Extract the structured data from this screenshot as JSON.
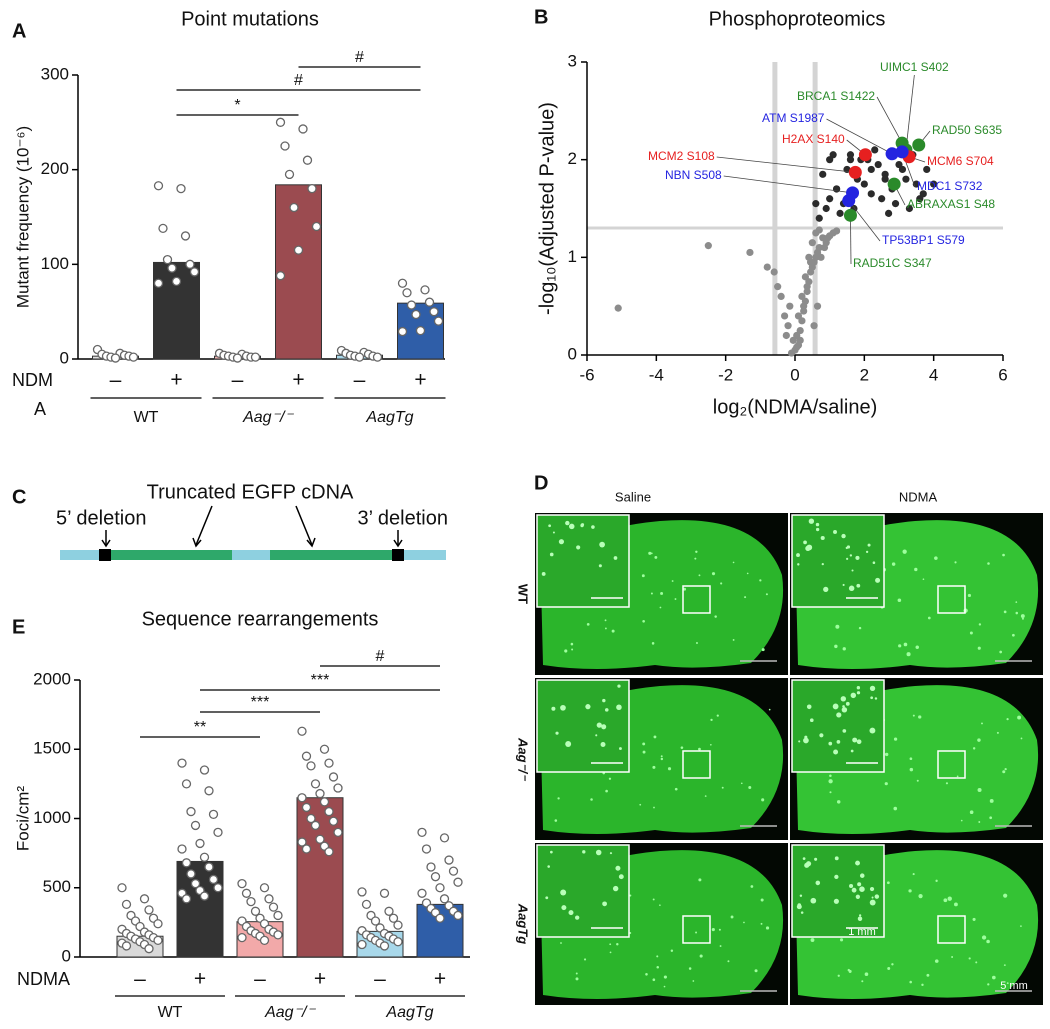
{
  "chart_data": [
    {
      "type": "bar",
      "panel": "A",
      "title": "Point mutations",
      "y_label": "Mutant frequency (10⁻⁶)",
      "treatment_label": "NDM",
      "treatment_label_wrap": "A",
      "categories": [
        "–",
        "+",
        "–",
        "+",
        "–",
        "+"
      ],
      "groups": [
        "WT",
        "Aag⁻/⁻",
        "AagTg"
      ],
      "values": [
        3,
        102,
        3,
        184,
        4,
        59
      ],
      "colors": [
        "#e0e0e0",
        "#333333",
        "#f2b3b3",
        "#9b4b50",
        "#a8d8ea",
        "#2f5ea8"
      ],
      "points": [
        [
          10,
          6,
          5,
          4,
          3,
          3,
          2,
          2,
          1
        ],
        [
          183,
          180,
          138,
          130,
          105,
          100,
          96,
          92,
          82,
          80
        ],
        [
          6,
          5,
          4,
          3,
          3,
          2,
          2,
          2,
          1
        ],
        [
          250,
          243,
          225,
          210,
          195,
          180,
          160,
          140,
          115,
          88
        ],
        [
          9,
          7,
          6,
          5,
          4,
          3,
          3,
          2,
          2
        ],
        [
          80,
          73,
          70,
          60,
          57,
          50,
          47,
          40,
          30,
          29
        ]
      ],
      "annotations": [
        "*",
        "#",
        "#"
      ],
      "ylim": [
        0,
        300
      ],
      "yticks": [
        0,
        100,
        200,
        300
      ]
    },
    {
      "type": "scatter",
      "panel": "B",
      "title": "Phosphoproteomics",
      "x_label": "log₂(NDMA/saline)",
      "y_label": "-log₁₀(Adjusted P-value)",
      "xlim": [
        -6,
        6
      ],
      "xticks": [
        -6,
        -4,
        -2,
        0,
        2,
        4,
        6
      ],
      "ylim": [
        0,
        3
      ],
      "yticks": [
        0,
        1,
        2,
        3
      ],
      "thresholds": {
        "x": [
          -0.58,
          0.58
        ],
        "y": 1.3
      },
      "series": [
        {
          "color": "#8c8c8c",
          "x": [
            -0.1,
            0.0,
            0.1,
            0.05,
            -0.05,
            0.15,
            0.2,
            -0.2,
            0.25,
            0.3,
            -0.3,
            0.35,
            0.4,
            -0.15,
            0.45,
            0.5,
            0.55,
            0.6,
            -0.4,
            0.7,
            0.65,
            0.8,
            0.3,
            0.5,
            0.4,
            0.2,
            0.1,
            0.6,
            0.7,
            0.9,
            -0.5,
            -0.6,
            -0.8,
            1.0,
            1.1,
            0.45,
            0.35,
            0.25,
            0.75,
            0.85,
            -1.3,
            -5.1,
            -2.5,
            0.95,
            0.55,
            0.65,
            1.2,
            -0.25,
            0.15,
            0.05
          ],
          "y": [
            0.02,
            0.05,
            0.1,
            0.2,
            0.15,
            0.25,
            0.35,
            0.3,
            0.45,
            0.55,
            0.4,
            0.65,
            0.75,
            0.5,
            0.85,
            0.9,
            0.95,
            1.0,
            0.6,
            1.1,
            1.05,
            1.2,
            0.8,
            1.15,
            1.0,
            0.6,
            0.4,
            1.25,
            1.28,
            1.15,
            0.7,
            0.85,
            0.9,
            1.22,
            1.25,
            0.95,
            0.7,
            0.5,
            1.0,
            1.1,
            1.05,
            0.48,
            1.12,
            1.2,
            0.3,
            0.5,
            1.27,
            0.2,
            0.15,
            0.08
          ]
        },
        {
          "color": "#2b2b2b",
          "x": [
            0.7,
            0.9,
            1.0,
            1.2,
            1.3,
            1.5,
            1.6,
            1.8,
            2.0,
            2.1,
            2.2,
            2.3,
            2.5,
            2.6,
            2.8,
            3.0,
            3.2,
            3.4,
            3.6,
            3.8,
            1.1,
            1.4,
            1.7,
            1.9,
            2.4,
            2.7,
            2.9,
            3.1,
            3.5,
            4.0,
            0.8,
            1.0,
            2.0,
            2.2,
            3.3,
            0.6,
            1.2,
            2.6,
            3.7,
            1.6
          ],
          "y": [
            1.4,
            1.5,
            1.6,
            1.7,
            1.45,
            1.9,
            2.0,
            1.8,
            1.75,
            2.0,
            1.9,
            2.1,
            1.6,
            1.85,
            1.7,
            1.95,
            1.8,
            2.05,
            1.6,
            1.9,
            2.05,
            1.55,
            1.5,
            2.0,
            1.95,
            1.45,
            1.55,
            1.9,
            1.75,
            1.75,
            1.85,
            2.0,
            2.05,
            1.65,
            1.5,
            1.55,
            1.7,
            1.8,
            1.65,
            2.05
          ]
        }
      ],
      "highlights": [
        {
          "label": "BRCA1 S1422",
          "color": "#2a8a2a",
          "x": 3.09,
          "y": 2.17
        },
        {
          "label": "UIMC1 S402",
          "color": "#2a8a2a",
          "x": 3.2,
          "y": 2.1
        },
        {
          "label": "RAD50 S635",
          "color": "#2a8a2a",
          "x": 3.57,
          "y": 2.15
        },
        {
          "label": "ATM S1987",
          "color": "#2424e0",
          "x": 2.8,
          "y": 2.06
        },
        {
          "label": "H2AX S140",
          "color": "#e62020",
          "x": 2.03,
          "y": 2.05
        },
        {
          "label": "MCM6 S704",
          "color": "#e62020",
          "x": 3.29,
          "y": 2.03
        },
        {
          "label": "MCM2 S108",
          "color": "#e62020",
          "x": 1.74,
          "y": 1.87
        },
        {
          "label": "NBN S508",
          "color": "#2424e0",
          "x": 1.66,
          "y": 1.66
        },
        {
          "label": "MDC1 S732",
          "color": "#2424e0",
          "x": 3.09,
          "y": 2.08
        },
        {
          "label": "ABRAXAS1 S48",
          "color": "#2a8a2a",
          "x": 2.86,
          "y": 1.75
        },
        {
          "label": "TP53BP1 S579",
          "color": "#2424e0",
          "x": 1.55,
          "y": 1.58
        },
        {
          "label": "RAD51C S347",
          "color": "#2a8a2a",
          "x": 1.6,
          "y": 1.43
        }
      ]
    },
    {
      "type": "bar",
      "panel": "E",
      "title": "Sequence rearrangements",
      "y_label": "Foci/cm²",
      "treatment_label": "NDMA",
      "categories": [
        "–",
        "+",
        "–",
        "+",
        "–",
        "+"
      ],
      "groups": [
        "WT",
        "Aag⁻/⁻",
        "AagTg"
      ],
      "values": [
        150,
        690,
        255,
        1150,
        185,
        380
      ],
      "colors": [
        "#d9d9d9",
        "#333333",
        "#f2a9a9",
        "#9b4b50",
        "#a8d8ea",
        "#2f5ea8"
      ],
      "points": [
        [
          500,
          420,
          380,
          340,
          300,
          280,
          260,
          240,
          220,
          200,
          180,
          170,
          160,
          150,
          140,
          130,
          120,
          110,
          100,
          90,
          80,
          60
        ],
        [
          1400,
          1350,
          1250,
          1200,
          1050,
          1030,
          950,
          900,
          820,
          780,
          720,
          680,
          650,
          600,
          560,
          530,
          500,
          480,
          460,
          440,
          420
        ],
        [
          530,
          500,
          460,
          420,
          400,
          360,
          330,
          300,
          280,
          260,
          240,
          220,
          200,
          190,
          180,
          170,
          160,
          150,
          140,
          120
        ],
        [
          1630,
          1500,
          1450,
          1400,
          1380,
          1300,
          1250,
          1220,
          1180,
          1150,
          1120,
          1080,
          1050,
          1000,
          980,
          950,
          900,
          850,
          830,
          800,
          780,
          760
        ],
        [
          470,
          460,
          380,
          330,
          300,
          280,
          260,
          230,
          210,
          190,
          170,
          160,
          150,
          140,
          130,
          120,
          110,
          100,
          90,
          80
        ],
        [
          900,
          860,
          780,
          700,
          650,
          620,
          580,
          540,
          500,
          460,
          420,
          390,
          370,
          350,
          330,
          320,
          300,
          280
        ]
      ],
      "annotations": [
        "**",
        "***",
        "***",
        "#"
      ],
      "ylim": [
        0,
        2000
      ],
      "yticks": [
        0,
        500,
        1000,
        1500,
        2000
      ]
    }
  ],
  "diagram": {
    "panel": "C",
    "title": "Truncated EGFP cDNA",
    "left_label": "5’ deletion",
    "right_label": "3’ deletion"
  },
  "image_panel": {
    "panel": "D",
    "columns": [
      "Saline",
      "NDMA"
    ],
    "rows": [
      "WT",
      "Aag⁻/⁻",
      "AagTg"
    ],
    "inset_scale": "1 mm",
    "scale": "5 mm"
  }
}
